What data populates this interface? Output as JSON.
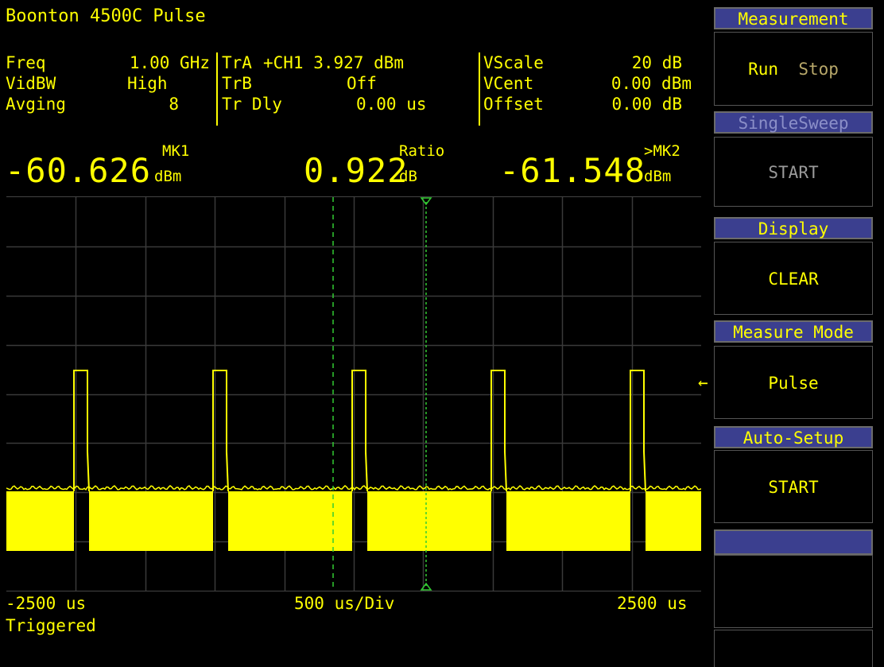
{
  "header": {
    "title": "Boonton 4500C Pulse"
  },
  "params": {
    "col1": [
      {
        "label": "Freq",
        "value": "1.00 GHz"
      },
      {
        "label": "VidBW",
        "value": "High"
      },
      {
        "label": "Avging",
        "value": "8"
      }
    ],
    "col2": [
      {
        "label": "TrA",
        "value": "+CH1 3.927 dBm"
      },
      {
        "label": "TrB",
        "value": "Off"
      },
      {
        "label": "Tr Dly",
        "value": "0.00 us"
      }
    ],
    "col3": [
      {
        "label": "VScale",
        "value": "20 dB"
      },
      {
        "label": "VCent",
        "value": "0.00 dBm"
      },
      {
        "label": "Offset",
        "value": "0.00 dB"
      }
    ]
  },
  "readouts": {
    "mk1": {
      "value": "-60.626",
      "unit": "dBm",
      "label": "MK1"
    },
    "ratio": {
      "value": "0.922",
      "unit": "dB",
      "label": "Ratio"
    },
    "mk2": {
      "value": "-61.548",
      "unit": "dBm",
      "label": ">MK2"
    }
  },
  "axis": {
    "left": "-2500 us",
    "center": "500 us/Div",
    "right": "2500 us",
    "status": "Triggered"
  },
  "colors": {
    "trace": "#ffff00",
    "grid": "#3a3a3a",
    "marker": "#33cc33",
    "softkey_head": "#3b3f8f"
  },
  "softkeys": [
    {
      "head": "Measurement",
      "body_a": "Run",
      "body_b": "Stop",
      "enabled": true
    },
    {
      "head": "SingleSweep",
      "body": "START",
      "enabled": false
    },
    {
      "head": "Display",
      "body": "CLEAR",
      "enabled": true
    },
    {
      "head": "Measure Mode",
      "body": "Pulse",
      "enabled": true,
      "selected": true
    },
    {
      "head": "Auto-Setup",
      "body": "START",
      "enabled": true
    },
    {
      "head": "",
      "body": "",
      "enabled": false
    }
  ],
  "selection_arrow": "←"
}
